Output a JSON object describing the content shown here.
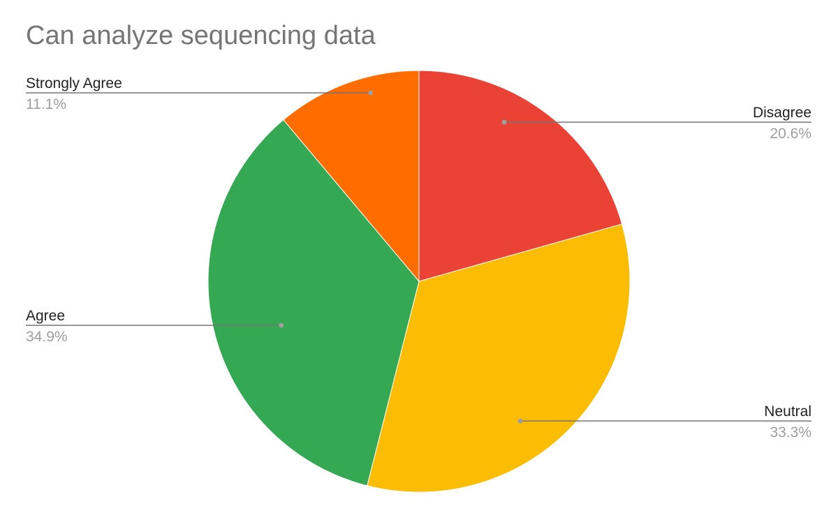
{
  "chart_data": {
    "type": "pie",
    "title": "Can analyze sequencing data",
    "start_angle_deg": 0,
    "direction": "clockwise",
    "legend": "labels-outside",
    "slices": [
      {
        "label": "Disagree",
        "value": 20.6,
        "display": "20.6%",
        "color": "#ea4335"
      },
      {
        "label": "Neutral",
        "value": 33.3,
        "display": "33.3%",
        "color": "#fbbc04"
      },
      {
        "label": "Agree",
        "value": 34.9,
        "display": "34.9%",
        "color": "#34a853"
      },
      {
        "label": "Strongly Agree",
        "value": 11.1,
        "display": "11.1%",
        "color": "#ff6d01"
      }
    ]
  }
}
